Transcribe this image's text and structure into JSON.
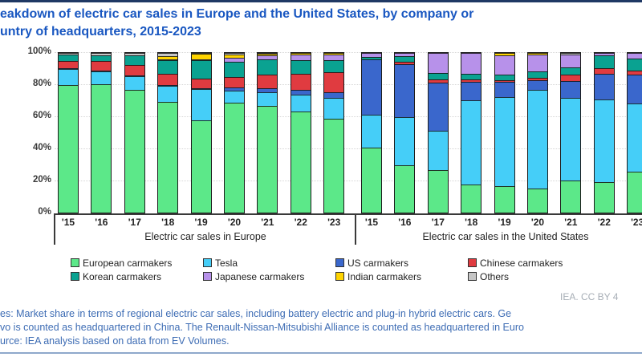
{
  "page": {
    "title_line1": "eakdown of electric car sales in Europe and the United States, by company or",
    "title_line2": "untry of headquarters, 2015-2023",
    "attribution": "IEA. CC BY 4",
    "notes_line1": "es: Market share in terms of regional electric car sales, including battery electric and plug-in hybrid electric cars. Ge",
    "notes_line2": "vo is counted as headquartered in China. The Renault-Nissan-Mitsubishi Alliance is counted as headquartered in Euro",
    "source_line": "urce: IEA analysis based on data from EV Volumes."
  },
  "chart_data": {
    "type": "bar",
    "stacked": true,
    "unit": "percent",
    "ylim": [
      0,
      100
    ],
    "yticks": [
      "0%",
      "20%",
      "40%",
      "60%",
      "80%",
      "100%"
    ],
    "grid": true,
    "legend_position": "bottom",
    "series_names": [
      "European carmakers",
      "Tesla",
      "US carmakers",
      "Chinese carmakers",
      "Korean carmakers",
      "Japanese carmakers",
      "Indian carmakers",
      "Others"
    ],
    "series_colors": [
      "#5ce889",
      "#45cef8",
      "#3a67cc",
      "#e03b40",
      "#0aa291",
      "#b791ea",
      "#ffd400",
      "#c6c6c6"
    ],
    "groups": [
      {
        "label": "Electric car sales in Europe",
        "categories": [
          "'15",
          "'16",
          "'17",
          "'18",
          "'19",
          "'20",
          "'21",
          "'22",
          "'23"
        ],
        "series": [
          {
            "name": "European carmakers",
            "values": [
              80,
              80.5,
              77,
              69.5,
              58,
              69,
              67,
              63.5,
              59
            ]
          },
          {
            "name": "Tesla",
            "values": [
              10,
              8,
              8.5,
              10,
              19.5,
              7.5,
              8.5,
              10.5,
              13
            ]
          },
          {
            "name": "US carmakers",
            "values": [
              0.5,
              0.5,
              0.5,
              0.5,
              0.5,
              2,
              2.5,
              3,
              3.5
            ]
          },
          {
            "name": "Chinese carmakers",
            "values": [
              4.5,
              6,
              6.5,
              7,
              6,
              6.5,
              8.5,
              10,
              12.5
            ]
          },
          {
            "name": "Korean carmakers",
            "values": [
              4,
              3.5,
              6,
              8.5,
              11.5,
              9.5,
              9.5,
              8.5,
              7.5
            ]
          },
          {
            "name": "Japanese carmakers",
            "values": [
              0,
              0,
              0,
              0.5,
              0.5,
              2.5,
              2.5,
              3.5,
              3.5
            ]
          },
          {
            "name": "Indian carmakers",
            "values": [
              0,
              0,
              0,
              2,
              3.5,
              2,
              1,
              1,
              1
            ]
          },
          {
            "name": "Others",
            "values": [
              1,
              1.5,
              1.5,
              2,
              0.5,
              1,
              0.5,
              0,
              0
            ]
          }
        ]
      },
      {
        "label": "Electric car sales in the United States",
        "categories": [
          "'15",
          "'16",
          "'17",
          "'18",
          "'19",
          "'20",
          "'21",
          "'22",
          "'23"
        ],
        "series": [
          {
            "name": "European carmakers",
            "values": [
              40.5,
              29.5,
              26.5,
              17.5,
              16.5,
              15,
              20,
              19,
              25.5
            ]
          },
          {
            "name": "Tesla",
            "values": [
              21,
              30.5,
              25,
              53,
              56,
              62,
              52,
              52,
              43
            ]
          },
          {
            "name": "US carmakers",
            "values": [
              34.5,
              33,
              30,
              11.5,
              9.5,
              6,
              10.5,
              16,
              18
            ]
          },
          {
            "name": "Chinese carmakers",
            "values": [
              0,
              1.5,
              2,
              1.5,
              1,
              1.5,
              4,
              3.5,
              2.5
            ]
          },
          {
            "name": "Korean carmakers",
            "values": [
              1.5,
              3.5,
              4,
              3.5,
              3.5,
              4,
              4.5,
              8,
              7.5
            ]
          },
          {
            "name": "Japanese carmakers",
            "values": [
              2.5,
              2,
              12.5,
              13,
              12,
              10.5,
              8,
              1.5,
              3.5
            ]
          },
          {
            "name": "Indian carmakers",
            "values": [
              0,
              0,
              0,
              0,
              1.5,
              1,
              0,
              0,
              0
            ]
          },
          {
            "name": "Others",
            "values": [
              0,
              0,
              0,
              0,
              0,
              0,
              1,
              0,
              0
            ]
          }
        ]
      }
    ],
    "legend": {
      "entries": [
        {
          "label": "European carmakers",
          "color": "#5ce889"
        },
        {
          "label": "Tesla",
          "color": "#45cef8"
        },
        {
          "label": "US carmakers",
          "color": "#3a67cc"
        },
        {
          "label": "Chinese carmakers",
          "color": "#e03b40"
        },
        {
          "label": "Korean carmakers",
          "color": "#0aa291"
        },
        {
          "label": "Japanese carmakers",
          "color": "#b791ea"
        },
        {
          "label": "Indian carmakers",
          "color": "#ffd400"
        },
        {
          "label": "Others",
          "color": "#c6c6c6"
        }
      ]
    },
    "colors": {
      "title": "#1957c1",
      "notes": "#3d6cb4",
      "attribution": "#a7aeb6",
      "axis": "#3a3a3a",
      "top_border": "#1f3864",
      "bottom_rule": "#8fa8cb"
    }
  }
}
